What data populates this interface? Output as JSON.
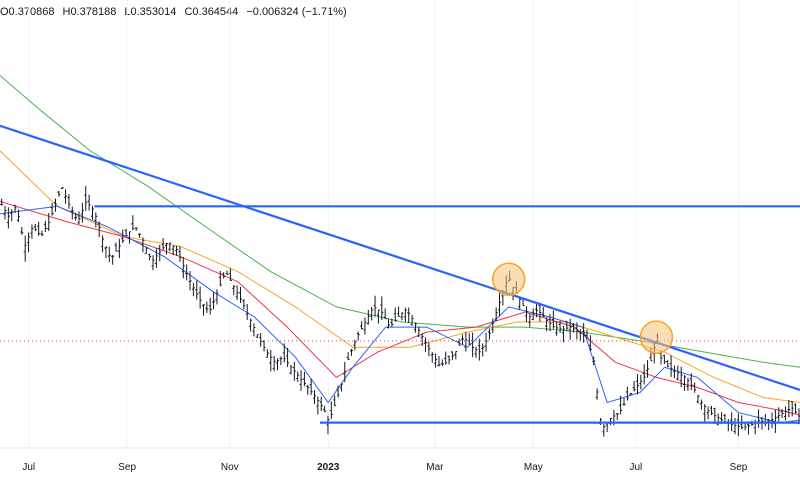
{
  "ohlc": {
    "open": "O0.370868",
    "high": "H0.378188",
    "low": "L0.353014",
    "close": "C0.364544",
    "change": "−0.006324 (−1.71%)"
  },
  "colors": {
    "candle": "#131722",
    "trendline": "#2962ff",
    "ma_fast": "#2962ff",
    "ma_mid": "#f23645",
    "ma_slow": "#f5a623",
    "ma_long": "#4caf50",
    "highlight_fill": "#f7c27a",
    "highlight_stroke": "#f5a623",
    "price_line": "#f23645",
    "tick_text": "#131722"
  },
  "chart_data": {
    "type": "line",
    "x_ticks": [
      {
        "label": "Jul",
        "bold": false
      },
      {
        "label": "Sep",
        "bold": false
      },
      {
        "label": "Nov",
        "bold": false
      },
      {
        "label": "2023",
        "bold": true
      },
      {
        "label": "Mar",
        "bold": false
      },
      {
        "label": "May",
        "bold": false
      },
      {
        "label": "Jul",
        "bold": false
      },
      {
        "label": "Sep",
        "bold": false
      }
    ],
    "price": [
      [
        0,
        0.42
      ],
      [
        2,
        0.414
      ],
      [
        4,
        0.418
      ],
      [
        6,
        0.402
      ],
      [
        8,
        0.41
      ],
      [
        10,
        0.406
      ],
      [
        12,
        0.412
      ],
      [
        14,
        0.421
      ],
      [
        15,
        0.426
      ],
      [
        17,
        0.418
      ],
      [
        19,
        0.412
      ],
      [
        21,
        0.42
      ],
      [
        23,
        0.416
      ],
      [
        25,
        0.405
      ],
      [
        27,
        0.397
      ],
      [
        29,
        0.402
      ],
      [
        31,
        0.407
      ],
      [
        33,
        0.41
      ],
      [
        35,
        0.404
      ],
      [
        37,
        0.396
      ],
      [
        39,
        0.4
      ],
      [
        41,
        0.404
      ],
      [
        43,
        0.401
      ],
      [
        45,
        0.393
      ],
      [
        47,
        0.386
      ],
      [
        49,
        0.38
      ],
      [
        51,
        0.376
      ],
      [
        53,
        0.384
      ],
      [
        55,
        0.392
      ],
      [
        57,
        0.386
      ],
      [
        59,
        0.38
      ],
      [
        61,
        0.373
      ],
      [
        63,
        0.366
      ],
      [
        65,
        0.36
      ],
      [
        67,
        0.356
      ],
      [
        69,
        0.358
      ],
      [
        71,
        0.354
      ],
      [
        73,
        0.35
      ],
      [
        75,
        0.346
      ],
      [
        77,
        0.342
      ],
      [
        79,
        0.337
      ],
      [
        80,
        0.333
      ],
      [
        81,
        0.336
      ],
      [
        83,
        0.346
      ],
      [
        85,
        0.358
      ],
      [
        87,
        0.366
      ],
      [
        89,
        0.372
      ],
      [
        91,
        0.378
      ],
      [
        93,
        0.376
      ],
      [
        95,
        0.37
      ],
      [
        97,
        0.374
      ],
      [
        99,
        0.377
      ],
      [
        101,
        0.372
      ],
      [
        103,
        0.366
      ],
      [
        105,
        0.36
      ],
      [
        107,
        0.355
      ],
      [
        109,
        0.356
      ],
      [
        111,
        0.36
      ],
      [
        113,
        0.366
      ],
      [
        115,
        0.362
      ],
      [
        117,
        0.36
      ],
      [
        119,
        0.366
      ],
      [
        121,
        0.376
      ],
      [
        123,
        0.386
      ],
      [
        124,
        0.39
      ],
      [
        125,
        0.386
      ],
      [
        127,
        0.38
      ],
      [
        129,
        0.374
      ],
      [
        131,
        0.377
      ],
      [
        133,
        0.373
      ],
      [
        135,
        0.37
      ],
      [
        137,
        0.369
      ],
      [
        139,
        0.37
      ],
      [
        141,
        0.368
      ],
      [
        143,
        0.366
      ],
      [
        145,
        0.355
      ],
      [
        146,
        0.335
      ],
      [
        147,
        0.33
      ],
      [
        149,
        0.334
      ],
      [
        151,
        0.336
      ],
      [
        153,
        0.342
      ],
      [
        155,
        0.346
      ],
      [
        157,
        0.35
      ],
      [
        159,
        0.358
      ],
      [
        160,
        0.366
      ],
      [
        161,
        0.358
      ],
      [
        163,
        0.354
      ],
      [
        165,
        0.352
      ],
      [
        167,
        0.35
      ],
      [
        169,
        0.346
      ],
      [
        171,
        0.34
      ],
      [
        173,
        0.336
      ],
      [
        175,
        0.334
      ],
      [
        177,
        0.332
      ],
      [
        179,
        0.331
      ],
      [
        181,
        0.33
      ],
      [
        183,
        0.331
      ],
      [
        185,
        0.333
      ],
      [
        187,
        0.332
      ],
      [
        189,
        0.334
      ],
      [
        191,
        0.336
      ],
      [
        193,
        0.338
      ],
      [
        195,
        0.334
      ]
    ],
    "ma_fast": [
      [
        0,
        0.415
      ],
      [
        14,
        0.418
      ],
      [
        26,
        0.41
      ],
      [
        40,
        0.398
      ],
      [
        52,
        0.384
      ],
      [
        62,
        0.374
      ],
      [
        72,
        0.358
      ],
      [
        80,
        0.34
      ],
      [
        86,
        0.354
      ],
      [
        94,
        0.37
      ],
      [
        104,
        0.37
      ],
      [
        114,
        0.362
      ],
      [
        124,
        0.378
      ],
      [
        134,
        0.374
      ],
      [
        142,
        0.37
      ],
      [
        148,
        0.34
      ],
      [
        156,
        0.344
      ],
      [
        162,
        0.354
      ],
      [
        170,
        0.35
      ],
      [
        180,
        0.336
      ],
      [
        190,
        0.332
      ],
      [
        195,
        0.333
      ]
    ],
    "ma_mid": [
      [
        0,
        0.42
      ],
      [
        16,
        0.412
      ],
      [
        30,
        0.406
      ],
      [
        44,
        0.398
      ],
      [
        58,
        0.388
      ],
      [
        70,
        0.37
      ],
      [
        82,
        0.35
      ],
      [
        92,
        0.36
      ],
      [
        104,
        0.368
      ],
      [
        116,
        0.37
      ],
      [
        128,
        0.376
      ],
      [
        140,
        0.37
      ],
      [
        150,
        0.356
      ],
      [
        160,
        0.35
      ],
      [
        170,
        0.346
      ],
      [
        180,
        0.34
      ],
      [
        190,
        0.337
      ],
      [
        195,
        0.335
      ]
    ],
    "ma_slow": [
      [
        0,
        0.44
      ],
      [
        14,
        0.418
      ],
      [
        30,
        0.406
      ],
      [
        44,
        0.402
      ],
      [
        58,
        0.392
      ],
      [
        72,
        0.378
      ],
      [
        86,
        0.362
      ],
      [
        100,
        0.362
      ],
      [
        114,
        0.368
      ],
      [
        126,
        0.372
      ],
      [
        138,
        0.372
      ],
      [
        150,
        0.366
      ],
      [
        162,
        0.36
      ],
      [
        174,
        0.35
      ],
      [
        186,
        0.342
      ],
      [
        195,
        0.34
      ]
    ],
    "ma_long": [
      [
        0,
        0.47
      ],
      [
        10,
        0.456
      ],
      [
        22,
        0.44
      ],
      [
        36,
        0.426
      ],
      [
        50,
        0.41
      ],
      [
        66,
        0.392
      ],
      [
        82,
        0.378
      ],
      [
        98,
        0.372
      ],
      [
        114,
        0.37
      ],
      [
        128,
        0.37
      ],
      [
        142,
        0.368
      ],
      [
        158,
        0.364
      ],
      [
        172,
        0.36
      ],
      [
        186,
        0.356
      ],
      [
        195,
        0.354
      ]
    ],
    "trendlines": [
      [
        [
          0,
          0.45
        ],
        [
          195,
          0.345
        ]
      ],
      [
        [
          23,
          0.418
        ],
        [
          195,
          0.418
        ]
      ],
      [
        [
          78,
          0.332
        ],
        [
          195,
          0.332
        ]
      ]
    ],
    "highlights": [
      [
        124,
        0.389
      ],
      [
        160,
        0.366
      ]
    ],
    "last_price": 0.3645
  }
}
